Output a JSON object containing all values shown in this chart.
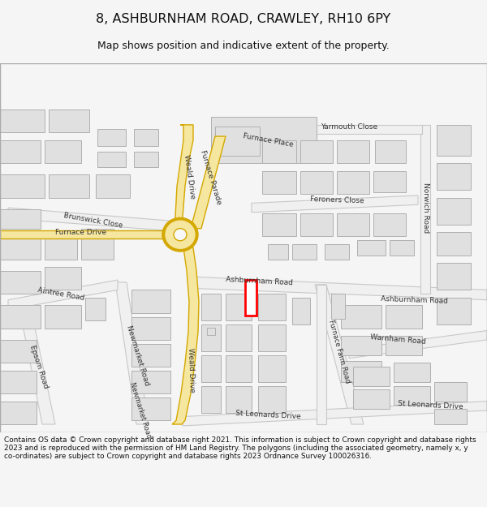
{
  "title": "8, ASHBURNHAM ROAD, CRAWLEY, RH10 6PY",
  "subtitle": "Map shows position and indicative extent of the property.",
  "footer": "Contains OS data © Crown copyright and database right 2021. This information is subject to Crown copyright and database rights 2023 and is reproduced with the permission of HM Land Registry. The polygons (including the associated geometry, namely x, y co-ordinates) are subject to Crown copyright and database rights 2023 Ordnance Survey 100026316.",
  "bg_color": "#f5f5f5",
  "map_bg": "#ffffff",
  "building_color": "#e0e0e0",
  "building_border": "#b0b0b0",
  "road_white": "#ffffff",
  "road_gray": "#c8c8c8",
  "road_yellow": "#f5e6a0",
  "road_yellow_border": "#d4a800",
  "highlight_color": "#ff0000",
  "highlight_fill": "#ffffff"
}
